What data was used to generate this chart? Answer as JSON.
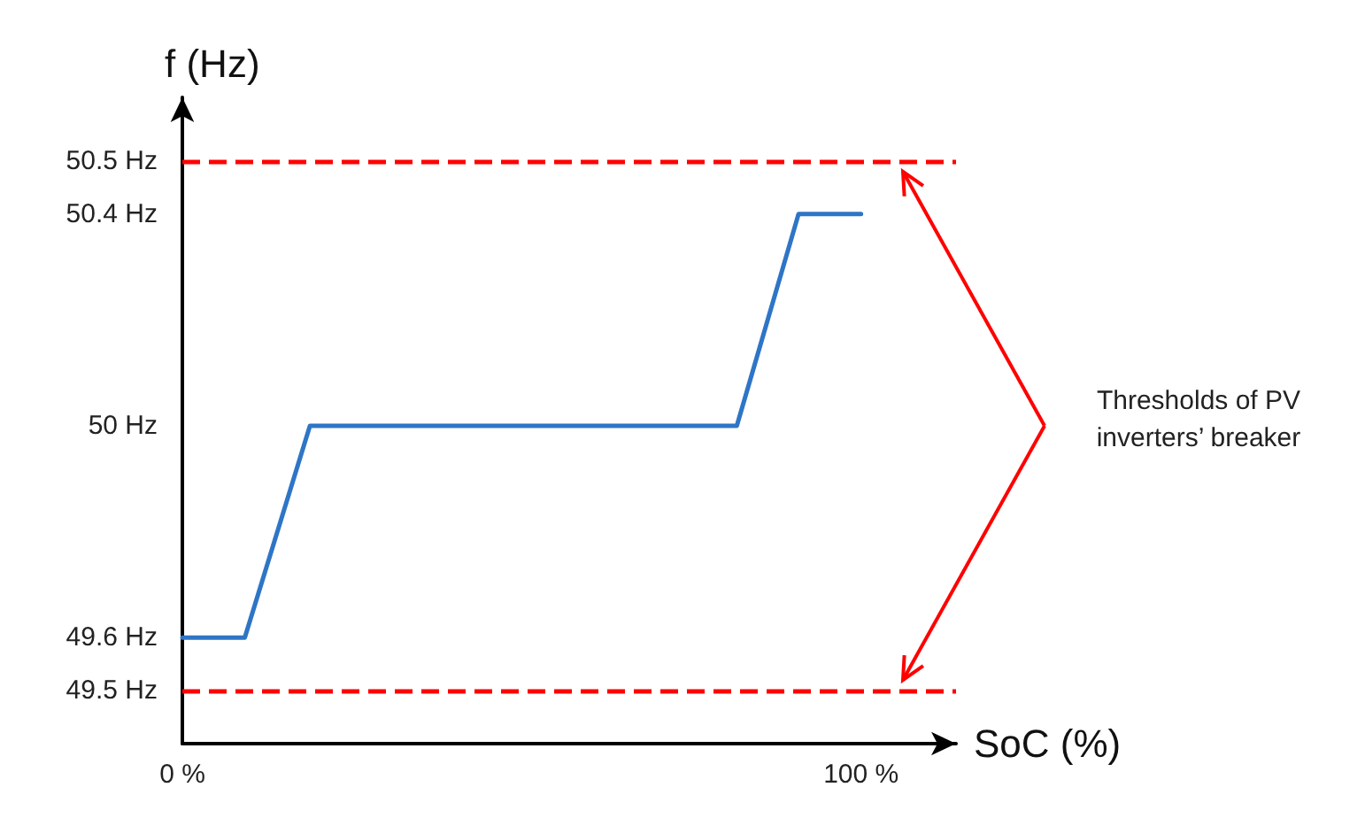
{
  "chart_data": {
    "type": "line",
    "xlabel": "SoC (%)",
    "ylabel": "f (Hz)",
    "x": [
      0,
      9.2,
      18.8,
      81.7,
      90.8,
      100
    ],
    "series": [
      {
        "color": "#2e75c6",
        "values": [
          49.6,
          49.6,
          50,
          50,
          50.4,
          50.4
        ]
      }
    ],
    "xlim": [
      0,
      114
    ],
    "xticks": [
      {
        "value": 0,
        "label": "0 %"
      },
      {
        "value": 100,
        "label": "100 %"
      }
    ],
    "ylim": [
      49.4,
      50.62
    ],
    "yticks": [
      {
        "value": 49.5,
        "label": "49.5 Hz"
      },
      {
        "value": 49.6,
        "label": "49.6 Hz"
      },
      {
        "value": 50,
        "label": "50 Hz"
      },
      {
        "value": 50.4,
        "label": "50.4 Hz"
      },
      {
        "value": 50.5,
        "label": "50.5 Hz"
      }
    ],
    "ref_lines": [
      {
        "axis": "y",
        "value": 50.5,
        "color": "#ff0000",
        "line_style": "dashed"
      },
      {
        "axis": "y",
        "value": 49.5,
        "color": "#ff0000",
        "line_style": "dashed"
      }
    ],
    "annotations": [
      "Thresholds of PV inverters’ breaker"
    ],
    "grid": false,
    "marker": "none",
    "line_style": "solid"
  }
}
